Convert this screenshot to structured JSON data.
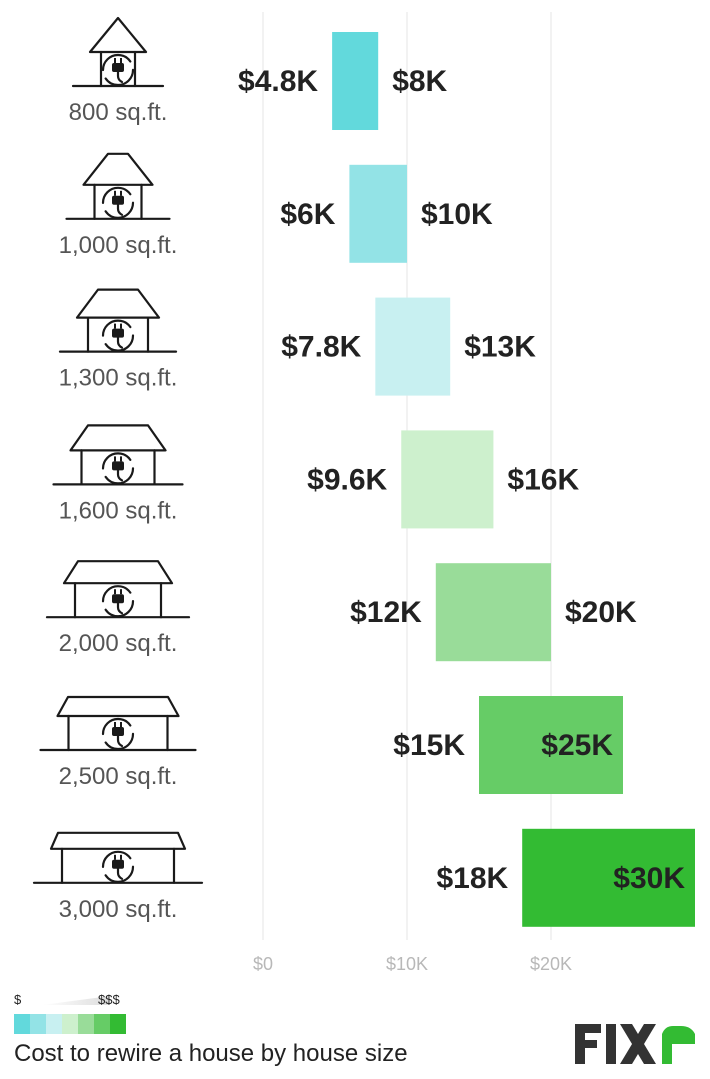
{
  "chart_data": {
    "type": "bar",
    "subtype": "floating-range",
    "categories": [
      "800 sq.ft.",
      "1,000 sq.ft.",
      "1,300 sq.ft.",
      "1,600 sq.ft.",
      "2,000 sq.ft.",
      "2,500 sq.ft.",
      "3,000 sq.ft."
    ],
    "low": [
      4800,
      6000,
      7800,
      9600,
      12000,
      15000,
      18000
    ],
    "high": [
      8000,
      10000,
      13000,
      16000,
      20000,
      25000,
      30000
    ],
    "low_labels": [
      "$4.8K",
      "$6K",
      "$7.8K",
      "$9.6K",
      "$12K",
      "$15K",
      "$18K"
    ],
    "high_labels": [
      "$8K",
      "$10K",
      "$13K",
      "$16K",
      "$20K",
      "$25K",
      "$30K"
    ],
    "bar_colors": [
      "#62d9dc",
      "#93e3e6",
      "#c8f0f1",
      "#cdf0cd",
      "#99dc99",
      "#66cc66",
      "#33bb33"
    ],
    "x_ticks": [
      0,
      10000,
      20000
    ],
    "x_tick_labels": [
      "$0",
      "$10K",
      "$20K"
    ],
    "xlim": [
      0,
      30000
    ],
    "grid": true
  },
  "legend": {
    "low_label": "$",
    "high_label": "$$$",
    "swatches": [
      "#62d9dc",
      "#93e3e6",
      "#c8f0f1",
      "#cdf0cd",
      "#99dc99",
      "#66cc66",
      "#33bb33"
    ]
  },
  "caption": "Cost to rewire a house by house size",
  "brand": {
    "name": "FIXR",
    "text_color": "#333333",
    "accent_color": "#33bb33"
  }
}
